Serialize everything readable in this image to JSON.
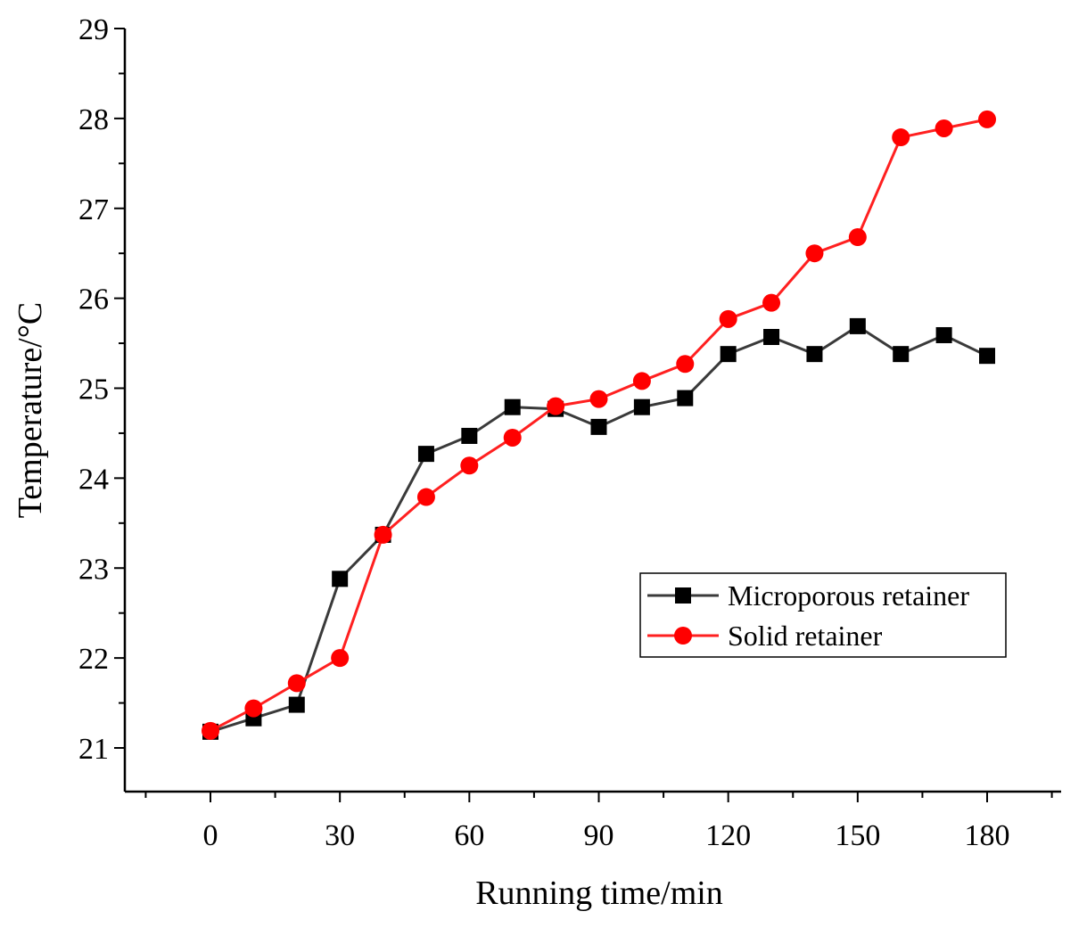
{
  "chart_data": {
    "type": "line",
    "title": "",
    "xlabel": "Running time/min",
    "ylabel": "Temperature/°C",
    "xlim": [
      -20,
      197
    ],
    "ylim": [
      20.5,
      29
    ],
    "xticks": [
      0,
      30,
      60,
      90,
      120,
      150,
      180
    ],
    "yticks": [
      21,
      22,
      23,
      24,
      25,
      26,
      27,
      28,
      29
    ],
    "grid": false,
    "legend_position": "center-right",
    "x": [
      0,
      10,
      20,
      30,
      40,
      50,
      60,
      70,
      80,
      90,
      100,
      110,
      120,
      130,
      140,
      150,
      160,
      170,
      180
    ],
    "series": [
      {
        "name": "Microporous retainer",
        "color": "#3a3a3a",
        "marker": "square",
        "values": [
          21.18,
          21.33,
          21.48,
          22.88,
          23.37,
          24.27,
          24.47,
          24.79,
          24.77,
          24.57,
          24.79,
          24.89,
          25.38,
          25.57,
          25.38,
          25.69,
          25.38,
          25.59,
          25.36
        ]
      },
      {
        "name": "Solid retainer",
        "color": "#ff2020",
        "marker": "circle",
        "values": [
          21.19,
          21.44,
          21.72,
          22.0,
          23.37,
          23.79,
          24.14,
          24.45,
          24.8,
          24.88,
          25.08,
          25.27,
          25.77,
          25.95,
          26.5,
          26.68,
          27.79,
          27.89,
          27.99
        ]
      }
    ]
  }
}
